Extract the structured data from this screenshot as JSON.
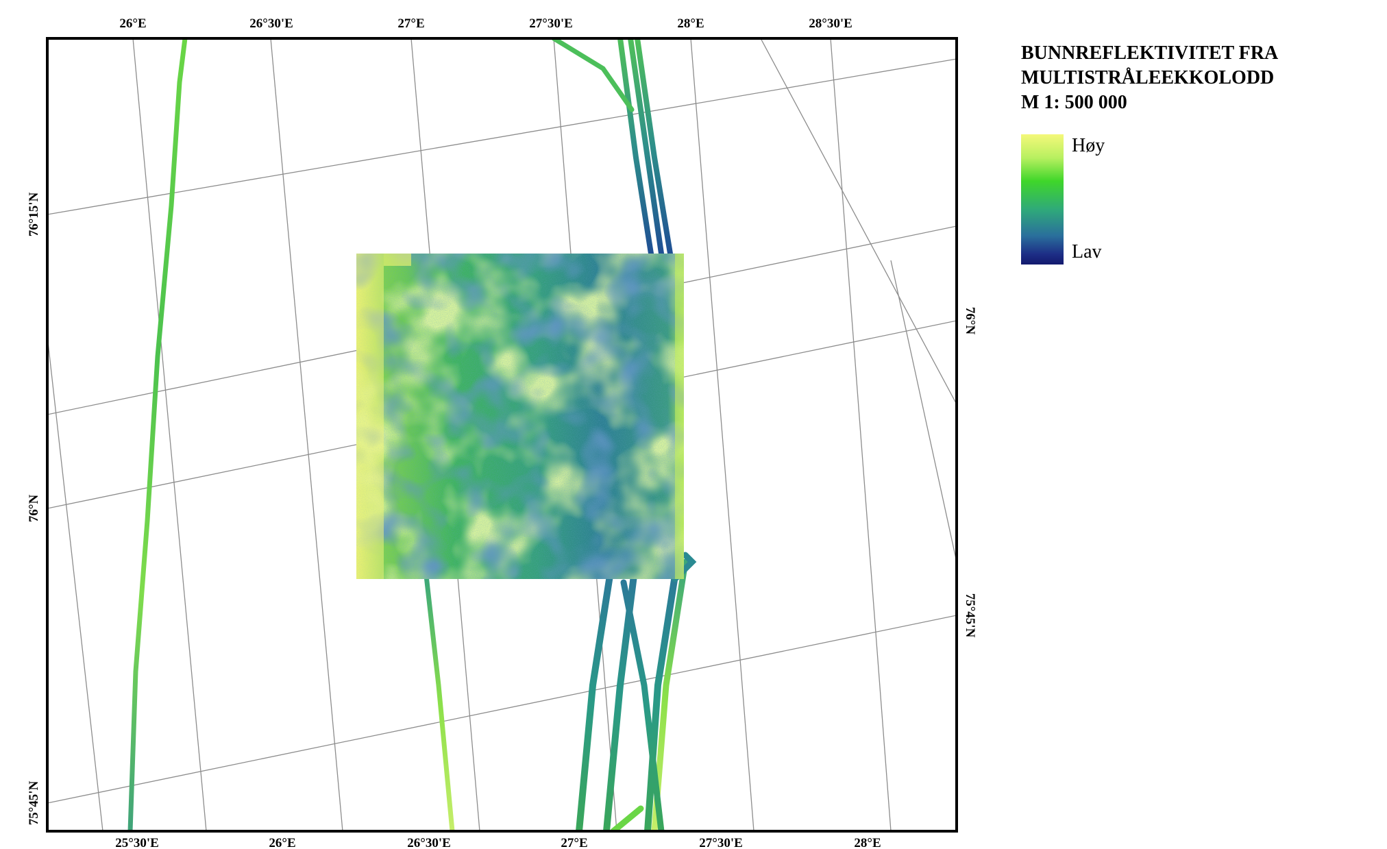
{
  "legend": {
    "title_lines": [
      "BUNNREFLEKTIVITET FRA",
      "MULTISTRÅLEEKKOLODD",
      "M 1: 500 000"
    ],
    "high_label": "Høy",
    "low_label": "Lav",
    "ramp_colors": [
      "#f4f87a",
      "#3fd62a",
      "#2fa97a",
      "#2a6f9c",
      "#131a6e"
    ]
  },
  "graticule": {
    "top_lon_labels": [
      "26°E",
      "26°30'E",
      "27°E",
      "27°30'E",
      "28°E",
      "28°30'E"
    ],
    "bottom_lon_labels": [
      "25°30'E",
      "26°E",
      "26°30'E",
      "27°E",
      "27°30'E",
      "28°E"
    ],
    "left_lat_labels": [
      "76°15'N",
      "76°N",
      "75°45'N"
    ],
    "right_lat_labels": [
      "76°N",
      "75°45'N"
    ]
  },
  "colors": {
    "frame": "#000000",
    "grid": "#8c8c8c",
    "survey_high": "#f4f87a",
    "survey_mid": "#3fc24a",
    "survey_low": "#1f5f9a"
  }
}
